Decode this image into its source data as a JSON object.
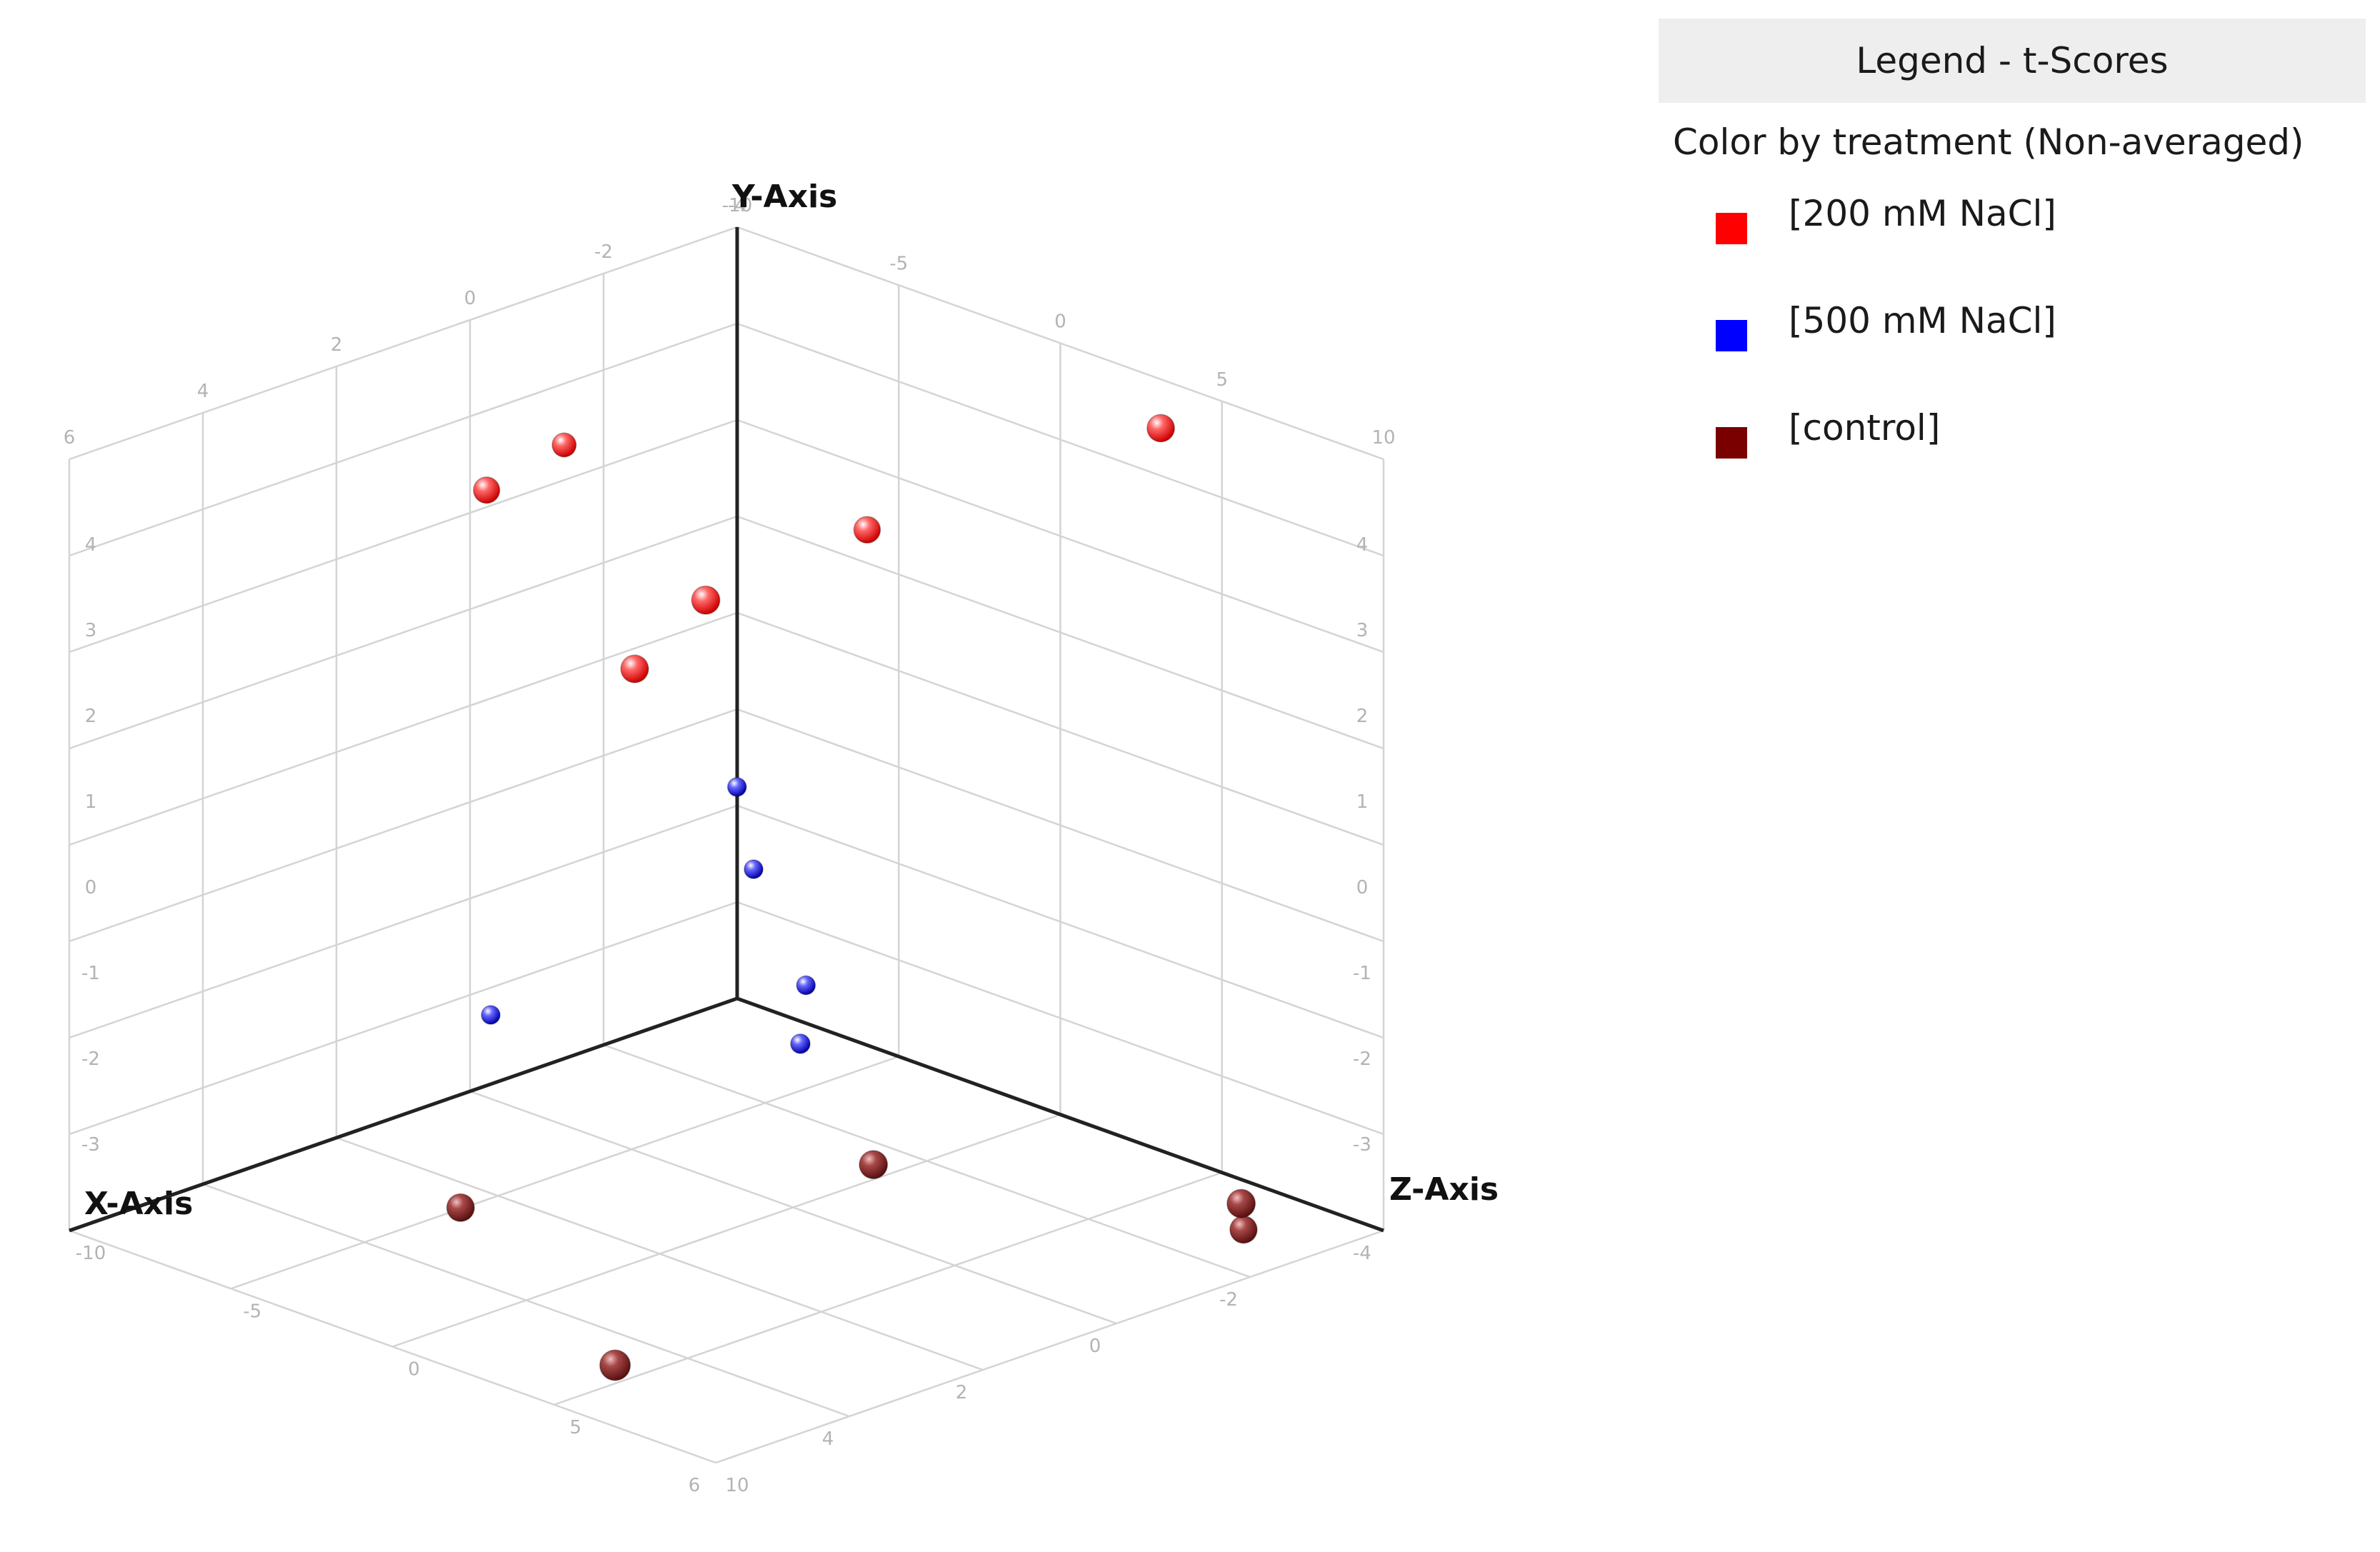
{
  "legend": {
    "title": "Legend - t-Scores",
    "subtitle": "Color by treatment (Non-averaged)",
    "entries": [
      {
        "label": "[200 mM NaCl]",
        "color": "#ff0000"
      },
      {
        "label": "[500 mM NaCl]",
        "color": "#0000ff"
      },
      {
        "label": "[control]",
        "color": "#7a0000"
      }
    ]
  },
  "chart_data": {
    "type": "scatter",
    "subtype": "3d",
    "xlabel": "X-Axis",
    "ylabel": "Y-Axis",
    "zlabel": "Z-Axis",
    "xlim": [
      -4,
      6
    ],
    "ylim": [
      -4,
      5
    ],
    "zlim": [
      -10,
      10
    ],
    "grid": true,
    "legend_position": "right",
    "ticks": {
      "x_wall": [
        "10",
        "5",
        "0",
        "-5",
        "-10"
      ],
      "z_wall": [
        "-4",
        "-2",
        "0",
        "2",
        "4",
        "6"
      ],
      "y_left": [
        "4",
        "3",
        "2",
        "1",
        "0",
        "-1",
        "-2",
        "-3"
      ],
      "y_right": [
        "4",
        "3",
        "2",
        "1",
        "0",
        "-1",
        "-2",
        "-3"
      ],
      "x_floor": [
        "-4",
        "-2",
        "0",
        "2",
        "4",
        "6"
      ],
      "z_floor": [
        "10",
        "5",
        "0",
        "-5",
        "-10"
      ]
    },
    "series": [
      {
        "name": "[200 mM NaCl]",
        "color": "#ff3333",
        "points": [
          [
            -2.6,
            5.2,
            6.0
          ],
          [
            -1.3,
            3.5,
            -0.4
          ],
          [
            1.6,
            3.6,
            0.6
          ],
          [
            1.6,
            2.5,
            -1.6
          ],
          [
            -1.7,
            3.0,
            -10.6
          ],
          [
            1.3,
            3.8,
            -6.8
          ]
        ]
      },
      {
        "name": "[500 mM NaCl]",
        "color": "#3333ee",
        "points": [
          [
            0.6,
            1.0,
            -0.5
          ],
          [
            0.4,
            0.0,
            -0.4
          ],
          [
            0.1,
            -1.3,
            0.6
          ],
          [
            2.4,
            -1.7,
            -4.4
          ],
          [
            1.2,
            -1.4,
            2.7
          ]
        ]
      },
      {
        "name": "[control]",
        "color": "#8b2a2a",
        "points": [
          [
            0.3,
            -3.0,
            3.1
          ],
          [
            -3.5,
            -4.3,
            6.7
          ],
          [
            -2.4,
            -3.4,
            8.9
          ],
          [
            2.9,
            -3.8,
            -4.3
          ],
          [
            4.7,
            -4.0,
            4.2
          ]
        ]
      }
    ]
  }
}
